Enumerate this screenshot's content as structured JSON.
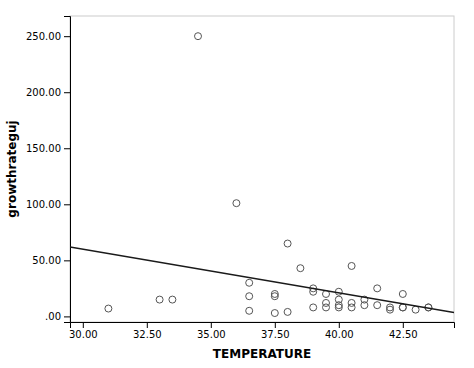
{
  "chart_data": {
    "type": "scatter",
    "xlabel": "TEMPERATURE",
    "ylabel": "growthrateguj",
    "series": [
      {
        "type": "scatter",
        "color": "#555555",
        "x": [
          31.0,
          33.0,
          33.5,
          34.5,
          36.0,
          36.5,
          36.5,
          36.5,
          37.5,
          37.5,
          37.5,
          38.0,
          38.0,
          38.5,
          39.0,
          39.0,
          39.0,
          39.5,
          39.5,
          39.5,
          40.0,
          40.0,
          40.0,
          40.0,
          40.5,
          40.5,
          40.5,
          41.0,
          41.0,
          41.5,
          41.5,
          42.0,
          42.0,
          42.5,
          42.5,
          42.5,
          43.0,
          43.5,
          43.5
        ],
        "values": [
          7.0,
          15.0,
          15.0,
          250.0,
          101.0,
          30.0,
          18.0,
          5.0,
          20.0,
          18.0,
          3.0,
          4.0,
          65.0,
          43.0,
          25.0,
          22.0,
          8.0,
          20.0,
          12.0,
          8.0,
          22.0,
          15.0,
          10.0,
          8.0,
          12.0,
          8.0,
          45.0,
          15.0,
          10.0,
          25.0,
          10.0,
          8.0,
          6.0,
          8.0,
          8.0,
          20.0,
          6.0,
          8.0,
          8.0
        ]
      },
      {
        "type": "line",
        "color": "#1a1a1a",
        "x": [
          29.5,
          44.5
        ],
        "values": [
          61.95,
          3.45
        ]
      }
    ],
    "xlim": [
      29.5,
      44.5
    ],
    "ylim": [
      -5,
      268
    ],
    "xticks": [
      {
        "value": 30.0,
        "label": "30.00"
      },
      {
        "value": 32.5,
        "label": "32.50"
      },
      {
        "value": 35.0,
        "label": "35.00"
      },
      {
        "value": 37.5,
        "label": "37.50"
      },
      {
        "value": 40.0,
        "label": "40.00"
      },
      {
        "value": 42.5,
        "label": "42.50"
      }
    ],
    "yticks": [
      {
        "value": 0.0,
        "label": ".00"
      },
      {
        "value": 50.0,
        "label": "50.00"
      },
      {
        "value": 100.0,
        "label": "100.00"
      },
      {
        "value": 150.0,
        "label": "150.00"
      },
      {
        "value": 200.0,
        "label": "200.00"
      },
      {
        "value": 250.0,
        "label": "250.00"
      }
    ]
  }
}
